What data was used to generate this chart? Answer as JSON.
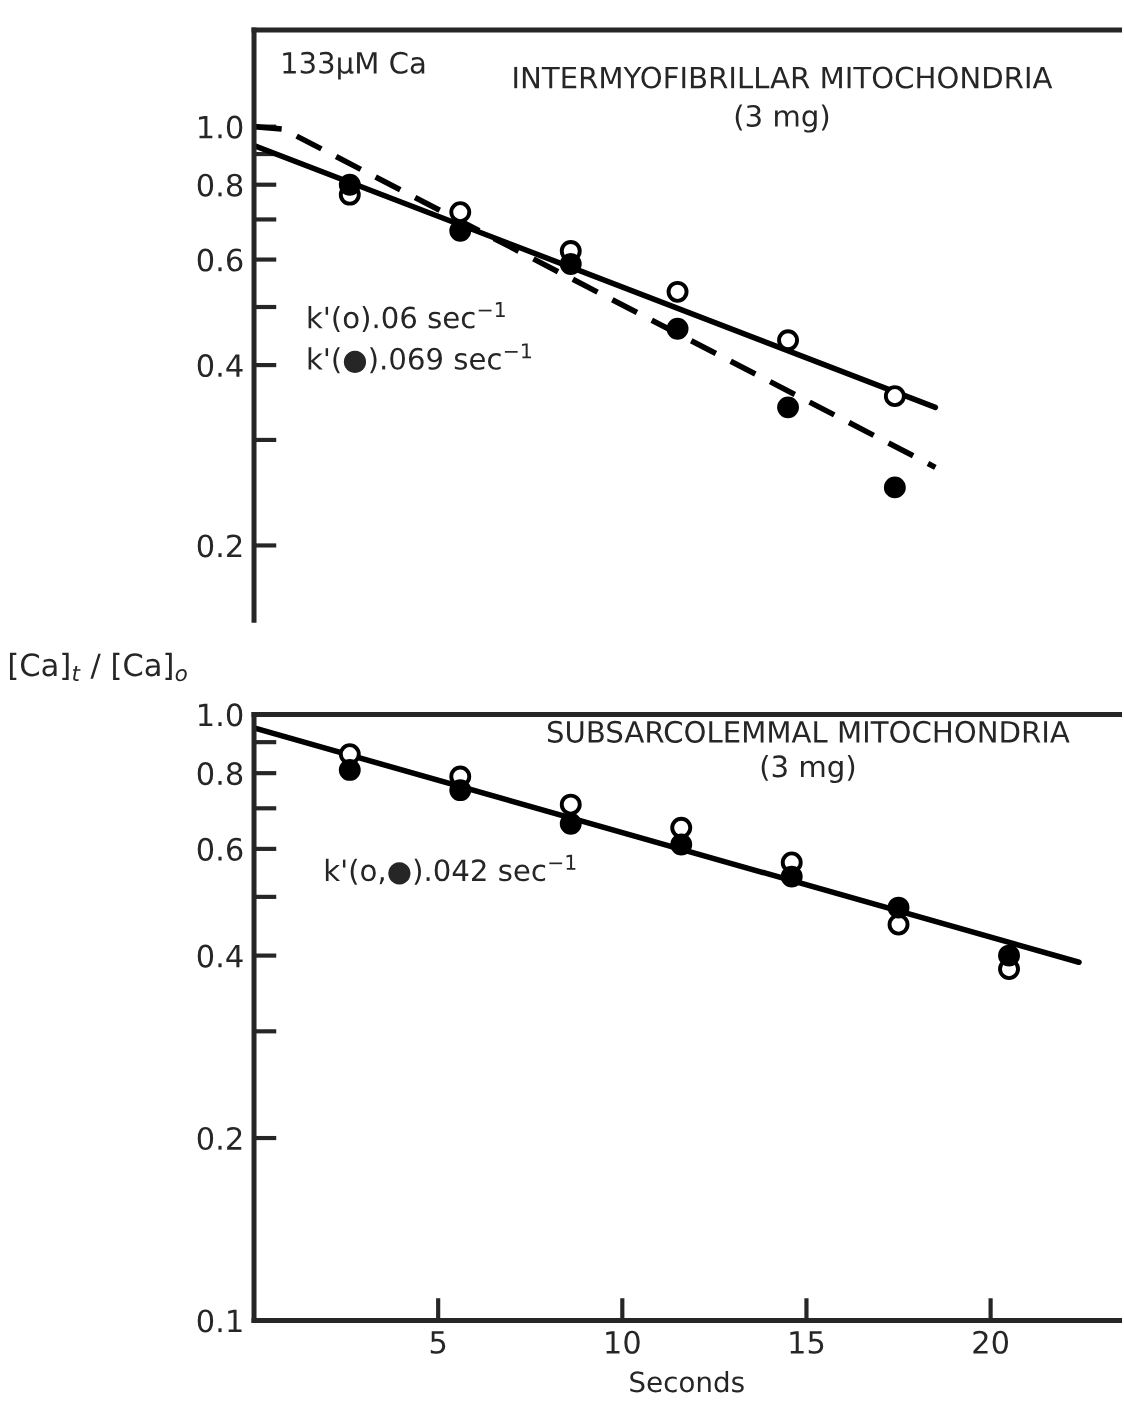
{
  "chart_data": [
    {
      "type": "scatter",
      "ylabel": "[Ca]$_{t}$ / [Ca]$_{o}$",
      "log": "y",
      "tick_labels": "y",
      "xlim": [
        0,
        23.5
      ],
      "ylim": [
        0.15,
        1.45
      ],
      "yticks": [
        {
          "value": 1.0,
          "label": "1.0"
        },
        {
          "value": 0.9,
          "label": null
        },
        0.8,
        {
          "value": 0.7,
          "label": null
        },
        0.6,
        {
          "value": 0.5,
          "label": null
        },
        0.4,
        {
          "value": 0.3,
          "label": null
        },
        0.2
      ],
      "annotations": [
        "133μM Ca",
        "INTERMYOFIBRILLAR MITOCHONDRIA",
        "(3 mg)",
        "k'(o).06 sec$^{−1}$",
        "k'(●).069 sec$^{−1}$"
      ],
      "series": [
        {
          "marker": "circle",
          "color": "#ffffff",
          "x": [
            2.6,
            5.6,
            8.6,
            11.5,
            14.5,
            17.4
          ],
          "values": [
            0.77,
            0.72,
            0.62,
            0.53,
            0.44,
            0.355
          ]
        },
        {
          "marker": "circle",
          "color": "#000000",
          "x": [
            2.6,
            5.6,
            8.6,
            11.5,
            14.5,
            17.4
          ],
          "values": [
            0.8,
            0.67,
            0.59,
            0.46,
            0.34,
            0.25
          ]
        },
        {
          "type": "line",
          "line_style": "solid",
          "color": "#000000",
          "x": [
            0,
            18.5
          ],
          "values": [
            0.93,
            0.34
          ]
        },
        {
          "type": "line",
          "line_style": "dashed",
          "color": "#000000",
          "x": [
            0,
            0.8,
            18.5
          ],
          "values": [
            1.0,
            0.99,
            0.27
          ]
        }
      ]
    },
    {
      "type": "scatter",
      "xlabel": "Seconds",
      "log": "y",
      "xlim": [
        0,
        23.5
      ],
      "ylim": [
        0.1,
        1.0
      ],
      "xticks": [
        5,
        10,
        15,
        20
      ],
      "yticks": [
        {
          "value": 1.0,
          "label": "1.0"
        },
        {
          "value": 0.9,
          "label": null
        },
        0.8,
        {
          "value": 0.7,
          "label": null
        },
        0.6,
        {
          "value": 0.5,
          "label": null
        },
        0.4,
        {
          "value": 0.3,
          "label": null
        },
        0.2,
        0.1
      ],
      "annotations": [
        "SUBSARCOLEMMAL MITOCHONDRIA",
        "(3 mg)",
        "k'(o,●).042 sec$^{−1}$"
      ],
      "series": [
        {
          "marker": "circle",
          "color": "#ffffff",
          "x": [
            2.6,
            5.6,
            8.6,
            11.6,
            14.6,
            17.5,
            20.5
          ],
          "values": [
            0.86,
            0.79,
            0.71,
            0.65,
            0.57,
            0.45,
            0.38
          ]
        },
        {
          "marker": "circle",
          "color": "#000000",
          "x": [
            2.6,
            5.6,
            8.6,
            11.6,
            14.6,
            17.5,
            20.5
          ],
          "values": [
            0.81,
            0.75,
            0.66,
            0.61,
            0.54,
            0.48,
            0.4
          ]
        },
        {
          "type": "line",
          "line_style": "solid",
          "color": "#000000",
          "x": [
            0,
            22.4
          ],
          "values": [
            0.95,
            0.39
          ]
        }
      ]
    }
  ]
}
